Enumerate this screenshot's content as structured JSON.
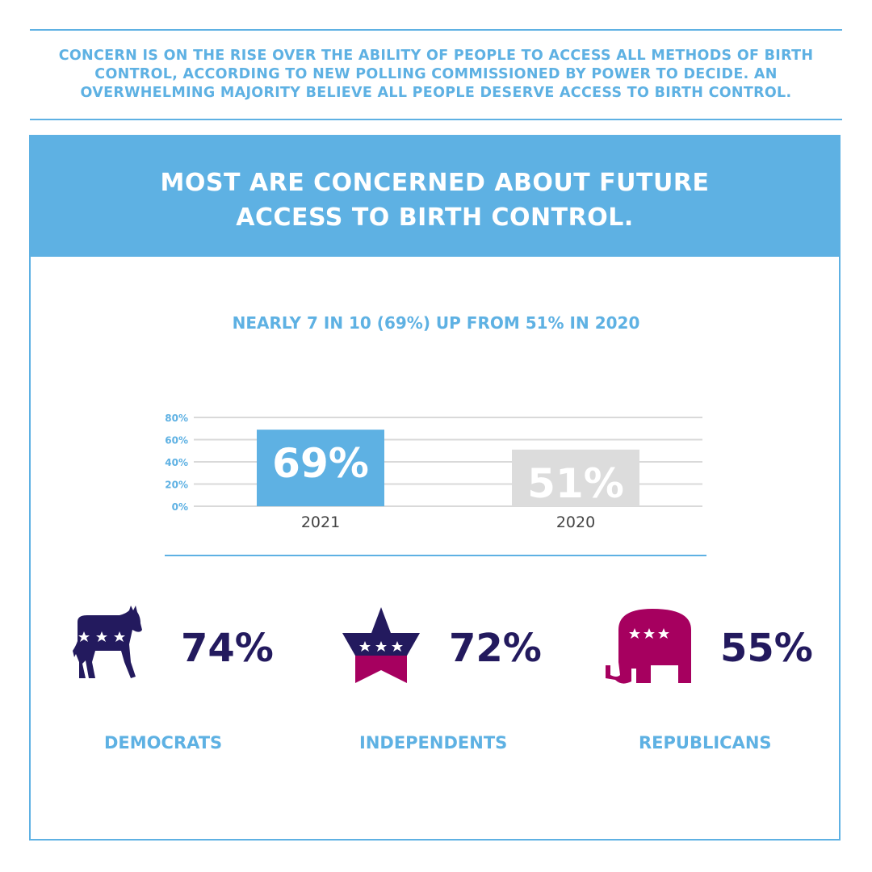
{
  "intro": "CONCERN IS ON THE RISE OVER THE ABILITY OF PEOPLE TO ACCESS ALL METHODS OF BIRTH CONTROL, ACCORDING TO NEW POLLING COMMISSIONED BY POWER TO DECIDE. AN OVERWHELMING MAJORITY BELIEVE ALL PEOPLE DESERVE ACCESS TO BIRTH CONTROL.",
  "banner": {
    "line1": "MOST ARE CONCERNED ABOUT FUTURE",
    "line2": "ACCESS TO BIRTH CONTROL."
  },
  "subtitle": "NEARLY 7 IN 10 (69%) UP FROM 51% IN 2020",
  "colors": {
    "accent": "#5eb1e3",
    "gray_bar": "#dcdcdc",
    "navy": "#231a5e",
    "magenta": "#a6005f"
  },
  "chart_data": {
    "type": "bar",
    "categories": [
      "2021",
      "2020"
    ],
    "values": [
      69,
      51
    ],
    "data_labels": [
      "69%",
      "51%"
    ],
    "bar_colors": [
      "#5eb1e3",
      "#dcdcdc"
    ],
    "ylim": [
      0,
      80
    ],
    "yticks": [
      0,
      20,
      40,
      60,
      80
    ],
    "ytick_labels": [
      "0%",
      "20%",
      "40%",
      "60%",
      "80%"
    ],
    "grid": true
  },
  "parties": [
    {
      "icon": "donkey-icon",
      "value": "74%",
      "label": "DEMOCRATS"
    },
    {
      "icon": "star-icon",
      "value": "72%",
      "label": "INDEPENDENTS"
    },
    {
      "icon": "elephant-icon",
      "value": "55%",
      "label": "REPUBLICANS"
    }
  ]
}
